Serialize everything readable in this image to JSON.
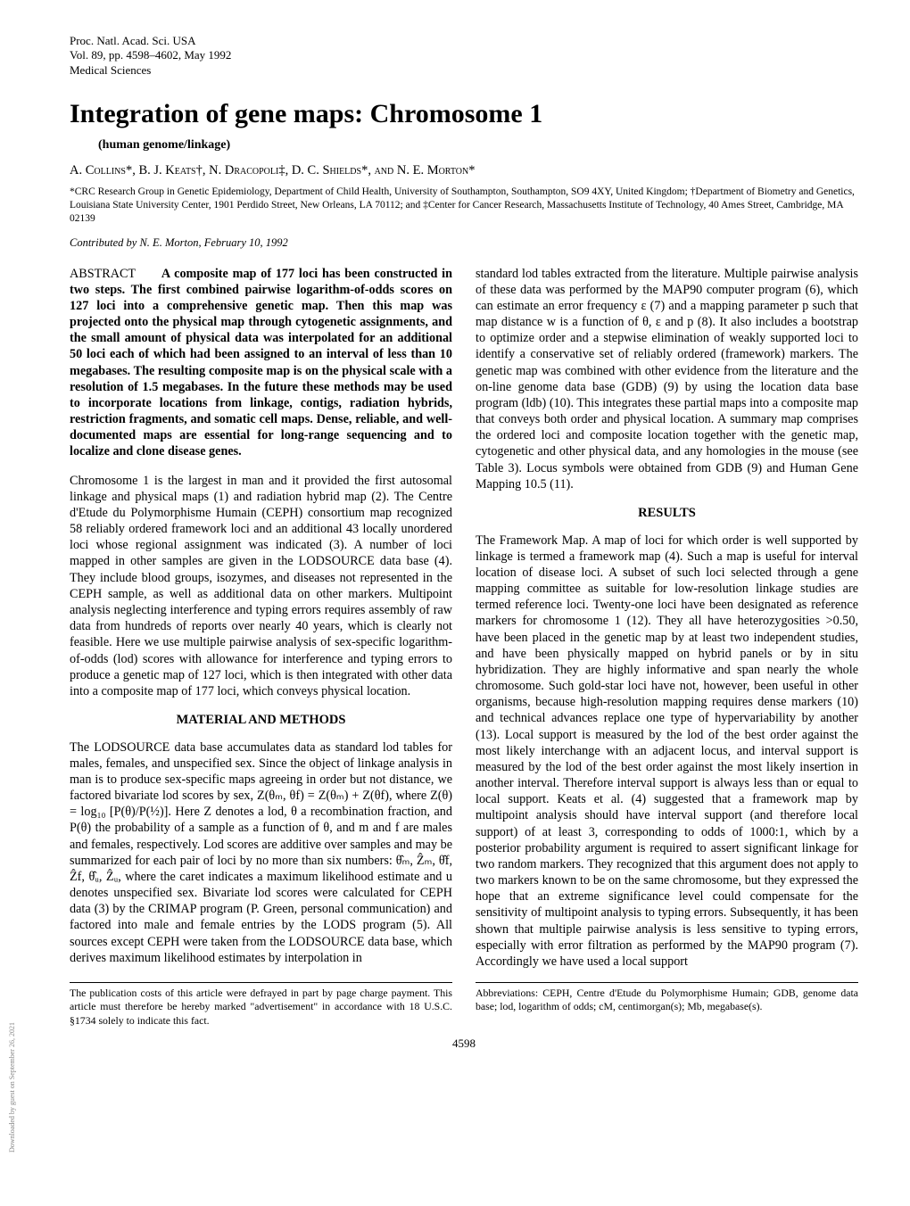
{
  "header": {
    "line1": "Proc. Natl. Acad. Sci. USA",
    "line2": "Vol. 89, pp. 4598–4602, May 1992",
    "line3": "Medical Sciences"
  },
  "title": "Integration of gene maps: Chromosome 1",
  "subtitle": "(human genome/linkage)",
  "authors": "A. Collins*, B. J. Keats†, N. Dracopoli‡, D. C. Shields*, and N. E. Morton*",
  "affiliations": "*CRC Research Group in Genetic Epidemiology, Department of Child Health, University of Southampton, Southampton, SO9 4XY, United Kingdom; †Department of Biometry and Genetics, Louisiana State University Center, 1901 Perdido Street, New Orleans, LA 70112; and ‡Center for Cancer Research, Massachusetts Institute of Technology, 40 Ames Street, Cambridge, MA 02139",
  "contributed": "Contributed by N. E. Morton, February 10, 1992",
  "abstract_label": "ABSTRACT",
  "abstract_text": "A composite map of 177 loci has been constructed in two steps. The first combined pairwise logarithm-of-odds scores on 127 loci into a comprehensive genetic map. Then this map was projected onto the physical map through cytogenetic assignments, and the small amount of physical data was interpolated for an additional 50 loci each of which had been assigned to an interval of less than 10 megabases. The resulting composite map is on the physical scale with a resolution of 1.5 megabases. In the future these methods may be used to incorporate locations from linkage, contigs, radiation hybrids, restriction fragments, and somatic cell maps. Dense, reliable, and well-documented maps are essential for long-range sequencing and to localize and clone disease genes.",
  "intro_para": "Chromosome 1 is the largest in man and it provided the first autosomal linkage and physical maps (1) and radiation hybrid map (2). The Centre d'Etude du Polymorphisme Humain (CEPH) consortium map recognized 58 reliably ordered framework loci and an additional 43 locally unordered loci whose regional assignment was indicated (3). A number of loci mapped in other samples are given in the LODSOURCE data base (4). They include blood groups, isozymes, and diseases not represented in the CEPH sample, as well as additional data on other markers. Multipoint analysis neglecting interference and typing errors requires assembly of raw data from hundreds of reports over nearly 40 years, which is clearly not feasible. Here we use multiple pairwise analysis of sex-specific logarithm-of-odds (lod) scores with allowance for interference and typing errors to produce a genetic map of 127 loci, which is then integrated with other data into a composite map of 177 loci, which conveys physical location.",
  "methods_head": "MATERIAL AND METHODS",
  "methods_para": "The LODSOURCE data base accumulates data as standard lod tables for males, females, and unspecified sex. Since the object of linkage analysis in man is to produce sex-specific maps agreeing in order but not distance, we factored bivariate lod scores by sex, Z(θₘ, θf) = Z(θₘ) + Z(θf), where Z(θ) = log₁₀ [P(θ)/P(½)]. Here Z denotes a lod, θ a recombination fraction, and P(θ) the probability of a sample as a function of θ, and m and f are males and females, respectively. Lod scores are additive over samples and may be summarized for each pair of loci by no more than six numbers: θ̂ₘ, Ẑₘ, θ̂f, Ẑf, θ̂ᵤ, Ẑᵤ, where the caret indicates a maximum likelihood estimate and u denotes unspecified sex. Bivariate lod scores were calculated for CEPH data (3) by the CRIMAP program (P. Green, personal communication) and factored into male and female entries by the LODS program (5). All sources except CEPH were taken from the LODSOURCE data base, which derives maximum likelihood estimates by interpolation in",
  "col2_para1": "standard lod tables extracted from the literature. Multiple pairwise analysis of these data was performed by the MAP90 computer program (6), which can estimate an error frequency ε (7) and a mapping parameter p such that map distance w is a function of θ, ε and p (8). It also includes a bootstrap to optimize order and a stepwise elimination of weakly supported loci to identify a conservative set of reliably ordered (framework) markers. The genetic map was combined with other evidence from the literature and the on-line genome data base (GDB) (9) by using the location data base program (ldb) (10). This integrates these partial maps into a composite map that conveys both order and physical location. A summary map comprises the ordered loci and composite location together with the genetic map, cytogenetic and other physical data, and any homologies in the mouse (see Table 3). Locus symbols were obtained from GDB (9) and Human Gene Mapping 10.5 (11).",
  "results_head": "RESULTS",
  "results_para": "The Framework Map. A map of loci for which order is well supported by linkage is termed a framework map (4). Such a map is useful for interval location of disease loci. A subset of such loci selected through a gene mapping committee as suitable for low-resolution linkage studies are termed reference loci. Twenty-one loci have been designated as reference markers for chromosome 1 (12). They all have heterozygosities >0.50, have been placed in the genetic map by at least two independent studies, and have been physically mapped on hybrid panels or by in situ hybridization. They are highly informative and span nearly the whole chromosome. Such gold-star loci have not, however, been useful in other organisms, because high-resolution mapping requires dense markers (10) and technical advances replace one type of hypervariability by another (13). Local support is measured by the lod of the best order against the most likely interchange with an adjacent locus, and interval support is measured by the lod of the best order against the most likely insertion in another interval. Therefore interval support is always less than or equal to local support. Keats et al. (4) suggested that a framework map by multipoint analysis should have interval support (and therefore local support) of at least 3, corresponding to odds of 1000:1, which by a posterior probability argument is required to assert significant linkage for two random markers. They recognized that this argument does not apply to two markers known to be on the same chromosome, but they expressed the hope that an extreme significance level could compensate for the sensitivity of multipoint analysis to typing errors. Subsequently, it has been shown that multiple pairwise analysis is less sensitive to typing errors, especially with error filtration as performed by the MAP90 program (7). Accordingly we have used a local support",
  "footer_left": "The publication costs of this article were defrayed in part by page charge payment. This article must therefore be hereby marked \"advertisement\" in accordance with 18 U.S.C. §1734 solely to indicate this fact.",
  "footer_right": "Abbreviations: CEPH, Centre d'Etude du Polymorphisme Humain; GDB, genome data base; lod, logarithm of odds; cM, centimorgan(s); Mb, megabase(s).",
  "page_number": "4598",
  "side_text": "Downloaded by guest on September 26, 2021"
}
